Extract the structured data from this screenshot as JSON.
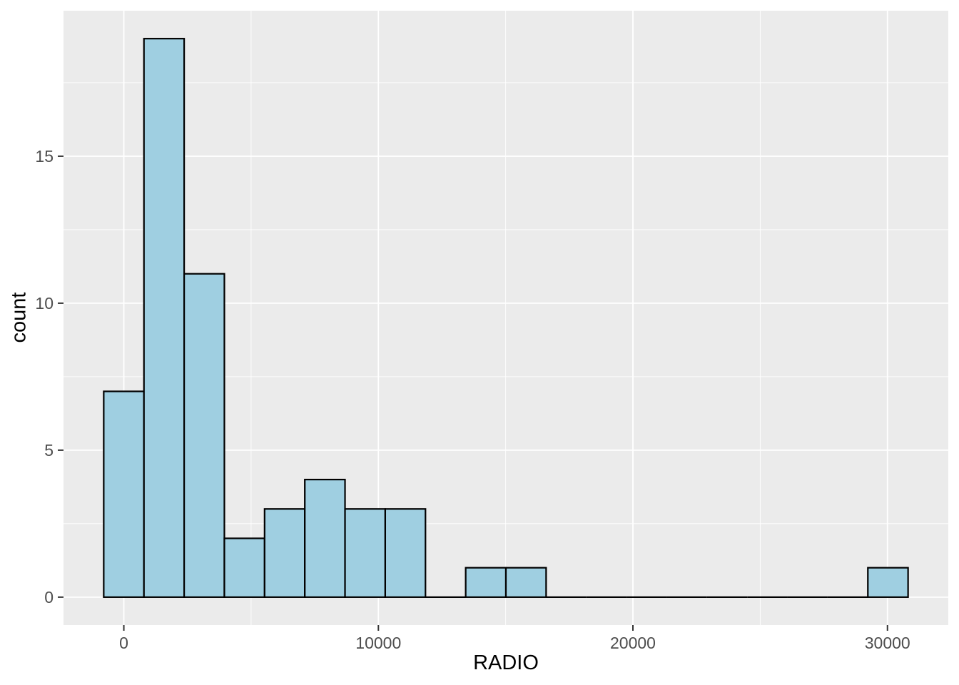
{
  "chart_data": {
    "type": "bar",
    "subtype": "histogram",
    "title": "",
    "xlabel": "RADIO",
    "ylabel": "count",
    "legend": null,
    "grid": "major-and-minor",
    "bins": {
      "binwidth": 1580,
      "centers": [
        0,
        1580,
        3160,
        4740,
        6320,
        7900,
        9480,
        11060,
        12640,
        14220,
        15800,
        17380,
        18960,
        20540,
        22120,
        23700,
        25280,
        26860,
        28440,
        30020
      ],
      "counts": [
        7,
        19,
        11,
        2,
        3,
        4,
        3,
        3,
        0,
        1,
        1,
        0,
        0,
        0,
        0,
        0,
        0,
        0,
        0,
        1
      ]
    },
    "x_axis": {
      "tick_values": [
        0,
        10000,
        20000,
        30000
      ],
      "tick_labels": [
        "0",
        "10000",
        "20000",
        "30000"
      ],
      "minor_values": [
        5000,
        15000,
        25000
      ],
      "lim": [
        -2370,
        32390
      ]
    },
    "y_axis": {
      "tick_values": [
        0,
        5,
        10,
        15
      ],
      "tick_labels": [
        "0",
        "5",
        "10",
        "15"
      ],
      "minor_values": [
        2.5,
        7.5,
        12.5,
        17.5
      ],
      "lim": [
        -0.95,
        19.95
      ]
    },
    "colors": {
      "bar_fill": "#9FCFE1",
      "bar_stroke": "#000000",
      "panel_background": "#EBEBEB",
      "gridline": "#FFFFFF",
      "tick_mark": "#333333",
      "tick_label": "#4D4D4D",
      "axis_title": "#000000",
      "figure_background": "#FFFFFF"
    }
  }
}
